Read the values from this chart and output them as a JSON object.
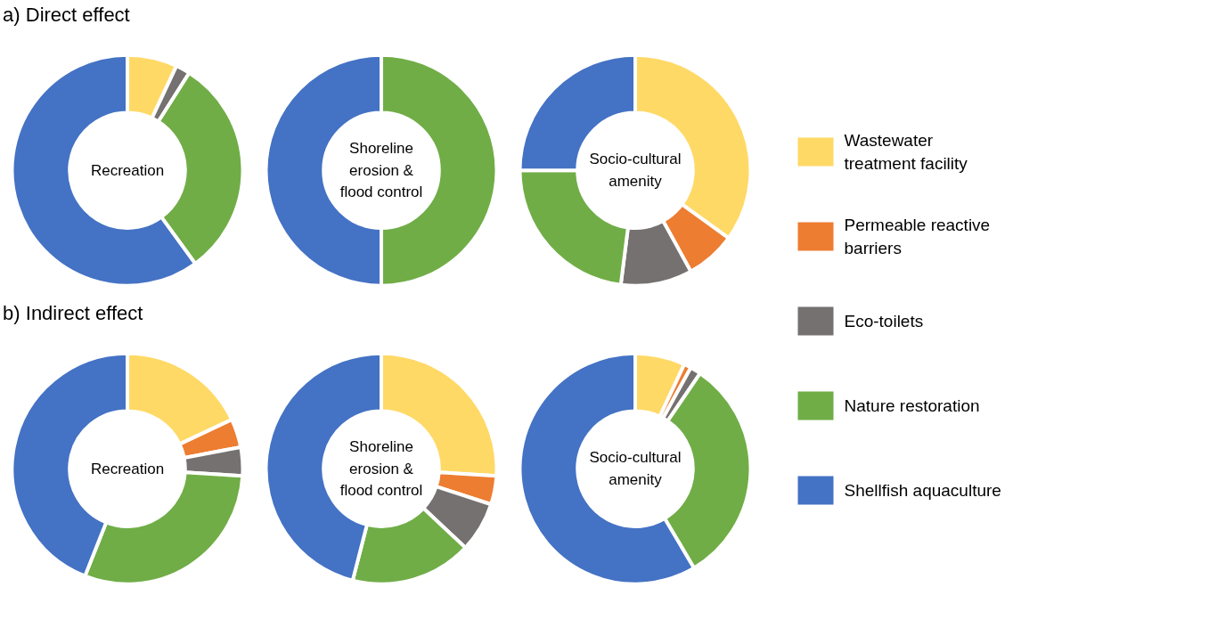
{
  "chart_data": [
    {
      "type": "donut",
      "title": "Recreation",
      "annotations": [
        "a) Direct effect"
      ],
      "legend": "right",
      "categories": [
        "Wastewater treatment facility",
        "Permeable reactive barriers",
        "Eco-toilets",
        "Nature restoration",
        "Shellfish aquaculture"
      ],
      "values": [
        7,
        0,
        2,
        31,
        60
      ],
      "colors": [
        "#ffd966",
        "#ed7d31",
        "#767171",
        "#70ad47",
        "#4472c4"
      ]
    },
    {
      "type": "donut",
      "title": "Shoreline\nerosion &\nflood control",
      "categories": [
        null,
        null,
        null,
        null,
        null
      ],
      "values": [
        0,
        0,
        0,
        50,
        50
      ],
      "colors": [
        "#ffd966",
        "#ed7d31",
        "#767171",
        "#70ad47",
        "#4472c4"
      ]
    },
    {
      "type": "donut",
      "title": "Socio-cultural\namenity",
      "categories": [
        null,
        null,
        null,
        null,
        null
      ],
      "values": [
        35,
        7,
        10,
        23,
        25
      ],
      "colors": [
        "#ffd966",
        "#ed7d31",
        "#767171",
        "#70ad47",
        "#4472c4"
      ]
    },
    {
      "type": "donut",
      "title": "Recreation",
      "annotations": [
        "b) Indirect effect"
      ],
      "categories": [
        null,
        null,
        null,
        null,
        null
      ],
      "values": [
        18,
        4,
        4,
        30,
        44
      ],
      "colors": [
        "#ffd966",
        "#ed7d31",
        "#767171",
        "#70ad47",
        "#4472c4"
      ]
    },
    {
      "type": "donut",
      "title": "Shoreline\nerosion &\nflood control",
      "categories": [
        null,
        null,
        null,
        null,
        null
      ],
      "values": [
        26,
        4,
        7,
        17,
        46
      ],
      "colors": [
        "#ffd966",
        "#ed7d31",
        "#767171",
        "#70ad47",
        "#4472c4"
      ]
    },
    {
      "type": "donut",
      "title": "Socio-cultural\namenity",
      "categories": [
        null,
        null,
        null,
        null,
        null
      ],
      "values": [
        7,
        1,
        1.5,
        32,
        58.5
      ],
      "colors": [
        "#ffd966",
        "#ed7d31",
        "#767171",
        "#70ad47",
        "#4472c4"
      ]
    }
  ]
}
